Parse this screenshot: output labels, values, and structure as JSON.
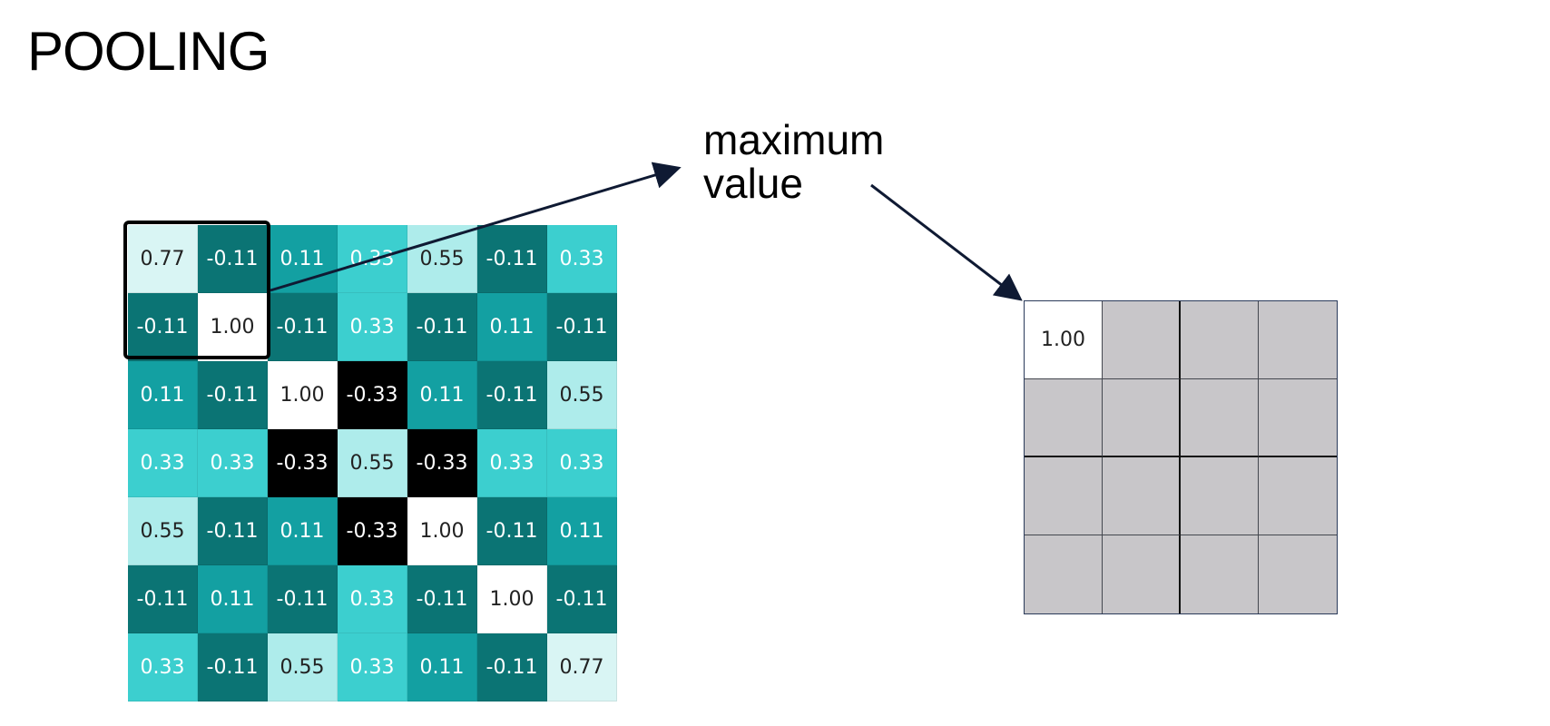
{
  "title": "POOLING",
  "annotation": {
    "line1": "maximum",
    "line2": "value"
  },
  "input_matrix": {
    "rows": [
      [
        "0.77",
        "-0.11",
        "0.11",
        "0.33",
        "0.55",
        "-0.11",
        "0.33"
      ],
      [
        "-0.11",
        "1.00",
        "-0.11",
        "0.33",
        "-0.11",
        "0.11",
        "-0.11"
      ],
      [
        "0.11",
        "-0.11",
        "1.00",
        "-0.33",
        "0.11",
        "-0.11",
        "0.55"
      ],
      [
        "0.33",
        "0.33",
        "-0.33",
        "0.55",
        "-0.33",
        "0.33",
        "0.33"
      ],
      [
        "0.55",
        "-0.11",
        "0.11",
        "-0.33",
        "1.00",
        "-0.11",
        "0.11"
      ],
      [
        "-0.11",
        "0.11",
        "-0.11",
        "0.33",
        "-0.11",
        "1.00",
        "-0.11"
      ],
      [
        "0.33",
        "-0.11",
        "0.55",
        "0.33",
        "0.11",
        "-0.11",
        "0.77"
      ]
    ],
    "highlighted_window": {
      "rows": [
        0,
        1
      ],
      "cols": [
        0,
        1
      ]
    }
  },
  "output_matrix": {
    "rows": [
      [
        "1.00",
        "",
        "",
        ""
      ],
      [
        "",
        "",
        "",
        ""
      ],
      [
        "",
        "",
        "",
        ""
      ],
      [
        "",
        "",
        "",
        ""
      ]
    ]
  },
  "colors": {
    "value_1.00": "#ffffff",
    "value_0.77": "#d9f5f4",
    "value_0.55": "#aeeceb",
    "value_0.33": "#3ccfcf",
    "value_0.11": "#13a0a2",
    "value_-0.11": "#0b7474",
    "value_-0.33": "#000000",
    "output_filled": "#ffffff",
    "output_empty": "#c8c6c9",
    "arrow": "#0f1a33"
  }
}
